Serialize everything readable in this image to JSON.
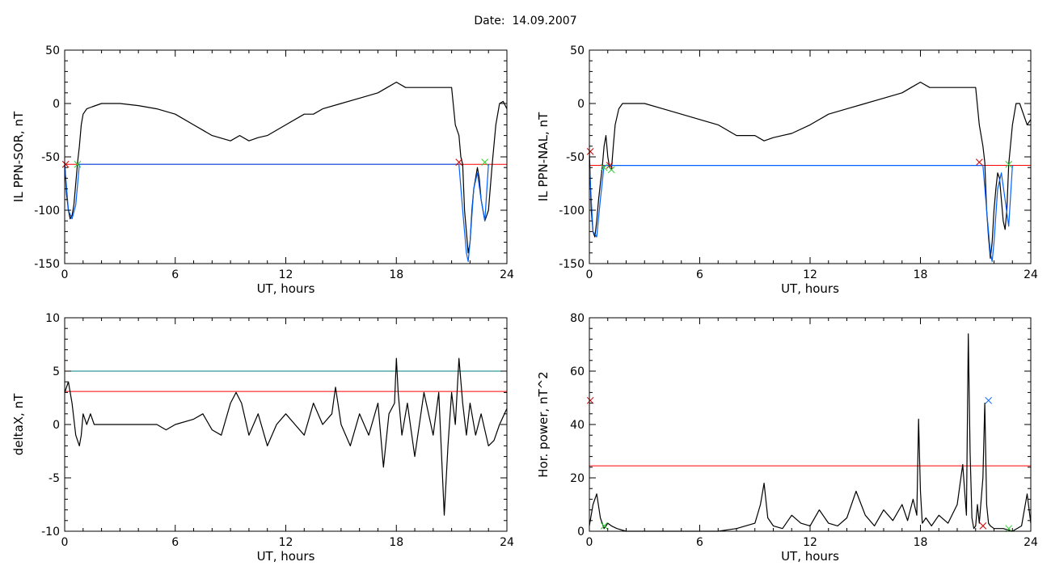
{
  "page": {
    "title": "Date:  14.09.2007"
  },
  "chart_data": [
    {
      "id": "sor",
      "type": "line",
      "xlabel": "UT, hours",
      "ylabel": "IL PPN-SOR, nT",
      "xlim": [
        0,
        24
      ],
      "ylim": [
        -150,
        50
      ],
      "xticks": [
        0,
        6,
        12,
        18,
        24
      ],
      "yticks": [
        -150,
        -100,
        -50,
        0,
        50
      ],
      "threshold_lines": [
        {
          "y": -57,
          "color": "#ff0000"
        }
      ],
      "series": [
        {
          "color": "#000000",
          "x": [
            0,
            0.1,
            0.2,
            0.3,
            0.4,
            0.5,
            0.6,
            0.7,
            0.8,
            0.9,
            1.0,
            1.2,
            1.5,
            2,
            3,
            4,
            5,
            6,
            7,
            8,
            9,
            9.5,
            10,
            10.5,
            11,
            12,
            13,
            13.5,
            14,
            15,
            16,
            17,
            17.5,
            18,
            18.5,
            19,
            20,
            21,
            21.2,
            21.4,
            21.5,
            21.6,
            21.7,
            21.8,
            21.9,
            22,
            22.1,
            22.2,
            22.3,
            22.4,
            22.5,
            22.6,
            22.7,
            22.8,
            23,
            23.2,
            23.4,
            23.6,
            23.8,
            24
          ],
          "y": [
            -55,
            -85,
            -100,
            -108,
            -105,
            -95,
            -75,
            -55,
            -40,
            -20,
            -10,
            -5,
            -3,
            0,
            0,
            -2,
            -5,
            -10,
            -20,
            -30,
            -35,
            -30,
            -35,
            -32,
            -30,
            -20,
            -10,
            -10,
            -5,
            0,
            5,
            10,
            15,
            20,
            15,
            15,
            15,
            15,
            -20,
            -30,
            -50,
            -57,
            -100,
            -120,
            -140,
            -130,
            -100,
            -80,
            -70,
            -60,
            -70,
            -90,
            -100,
            -110,
            -100,
            -57,
            -20,
            0,
            2,
            -5
          ]
        },
        {
          "color": "#0060ff",
          "x": [
            0,
            0.2,
            0.4,
            0.6,
            0.8,
            21.4,
            21.6,
            21.8,
            21.9,
            22,
            22.2,
            22.4,
            22.6,
            22.8,
            23
          ],
          "y": [
            -57,
            -100,
            -108,
            -95,
            -57,
            -57,
            -100,
            -140,
            -148,
            -130,
            -80,
            -65,
            -90,
            -110,
            -57
          ]
        }
      ],
      "markers": [
        {
          "x": 0.05,
          "y": -57,
          "color": "#cc0000",
          "shape": "x"
        },
        {
          "x": 0.7,
          "y": -57,
          "color": "#33cc33",
          "shape": "x"
        },
        {
          "x": 21.4,
          "y": -55,
          "color": "#cc0000",
          "shape": "x"
        },
        {
          "x": 22.8,
          "y": -55,
          "color": "#33cc33",
          "shape": "x"
        }
      ]
    },
    {
      "id": "nal",
      "type": "line",
      "xlabel": "UT, hours",
      "ylabel": "IL PPN-NAL, nT",
      "xlim": [
        0,
        24
      ],
      "ylim": [
        -150,
        50
      ],
      "xticks": [
        0,
        6,
        12,
        18,
        24
      ],
      "yticks": [
        -150,
        -100,
        -50,
        0,
        50
      ],
      "threshold_lines": [
        {
          "y": -58,
          "color": "#ff0000"
        }
      ],
      "series": [
        {
          "color": "#000000",
          "x": [
            0,
            0.1,
            0.2,
            0.3,
            0.4,
            0.5,
            0.6,
            0.7,
            0.8,
            0.9,
            1.0,
            1.1,
            1.2,
            1.3,
            1.4,
            1.6,
            1.8,
            2,
            3,
            4,
            5,
            6,
            7,
            8,
            9,
            9.5,
            10,
            10.5,
            11,
            12,
            13,
            14,
            15,
            16,
            17,
            17.5,
            18,
            18.5,
            19,
            20,
            21,
            21.2,
            21.4,
            21.5,
            21.6,
            21.7,
            21.8,
            21.9,
            22,
            22.1,
            22.2,
            22.3,
            22.4,
            22.5,
            22.6,
            22.7,
            22.8,
            23,
            23.2,
            23.4,
            23.6,
            23.8,
            24
          ],
          "y": [
            -45,
            -100,
            -120,
            -125,
            -110,
            -90,
            -75,
            -60,
            -40,
            -30,
            -50,
            -60,
            -62,
            -40,
            -20,
            -5,
            0,
            0,
            0,
            -5,
            -10,
            -15,
            -20,
            -30,
            -30,
            -35,
            -32,
            -30,
            -28,
            -20,
            -10,
            -5,
            0,
            5,
            10,
            15,
            20,
            15,
            15,
            15,
            15,
            -20,
            -40,
            -55,
            -100,
            -125,
            -145,
            -130,
            -100,
            -80,
            -65,
            -70,
            -90,
            -110,
            -118,
            -100,
            -57,
            -20,
            0,
            0,
            -10,
            -20,
            -15
          ]
        },
        {
          "color": "#0060ff",
          "x": [
            0,
            0.2,
            0.4,
            0.6,
            0.8,
            21.4,
            21.6,
            21.8,
            21.9,
            22,
            22.2,
            22.4,
            22.6,
            22.8,
            23
          ],
          "y": [
            -58,
            -120,
            -125,
            -90,
            -58,
            -58,
            -100,
            -140,
            -148,
            -130,
            -80,
            -65,
            -90,
            -115,
            -58
          ]
        }
      ],
      "markers": [
        {
          "x": 0.05,
          "y": -45,
          "color": "#cc0000",
          "shape": "x"
        },
        {
          "x": 0.8,
          "y": -60,
          "color": "#33cc33",
          "shape": "x"
        },
        {
          "x": 1.1,
          "y": -58,
          "color": "#cc0000",
          "shape": "x"
        },
        {
          "x": 1.2,
          "y": -62,
          "color": "#33cc33",
          "shape": "x"
        },
        {
          "x": 21.2,
          "y": -55,
          "color": "#cc0000",
          "shape": "x"
        },
        {
          "x": 22.8,
          "y": -57,
          "color": "#33cc33",
          "shape": "x"
        }
      ]
    },
    {
      "id": "deltax",
      "type": "line",
      "xlabel": "UT, hours",
      "ylabel": "deltaX, nT",
      "xlim": [
        0,
        24
      ],
      "ylim": [
        -10,
        10
      ],
      "xticks": [
        0,
        6,
        12,
        18,
        24
      ],
      "yticks": [
        -10,
        -5,
        0,
        5,
        10
      ],
      "threshold_lines": [
        {
          "y": 5,
          "color": "#008080"
        },
        {
          "y": 3.1,
          "color": "#ff0000"
        }
      ],
      "series": [
        {
          "color": "#000000",
          "x": [
            0,
            0.2,
            0.4,
            0.6,
            0.8,
            0.9,
            1.0,
            1.2,
            1.4,
            1.6,
            2,
            2.5,
            3,
            4,
            5,
            5.5,
            6,
            7,
            7.5,
            8,
            8.5,
            9,
            9.3,
            9.6,
            10,
            10.5,
            11,
            11.5,
            12,
            12.5,
            13,
            13.5,
            14,
            14.5,
            14.7,
            15,
            15.5,
            16,
            16.5,
            17,
            17.3,
            17.6,
            17.9,
            18.0,
            18.1,
            18.3,
            18.6,
            19,
            19.5,
            20,
            20.3,
            20.6,
            20.8,
            21.0,
            21.2,
            21.4,
            21.6,
            21.8,
            22,
            22.3,
            22.6,
            23,
            23.3,
            23.6,
            24
          ],
          "y": [
            3,
            4,
            2,
            -1,
            -2,
            -1,
            1,
            0,
            1,
            0,
            0,
            0,
            0,
            0,
            0,
            -0.5,
            0,
            0.5,
            1,
            -0.5,
            -1,
            2,
            3,
            2,
            -1,
            1,
            -2,
            0,
            1,
            0,
            -1,
            2,
            0,
            1,
            3.5,
            0,
            -2,
            1,
            -1,
            2,
            -4,
            1,
            2,
            6.2,
            3,
            -1,
            2,
            -3,
            3,
            -1,
            3,
            -8.5,
            -2,
            3,
            0,
            6.2,
            2,
            -1,
            2,
            -1,
            1,
            -2,
            -1.5,
            0,
            1.5
          ]
        }
      ],
      "markers": []
    },
    {
      "id": "power",
      "type": "line",
      "xlabel": "UT, hours",
      "ylabel": "Hor. power, nT^2",
      "xlim": [
        0,
        24
      ],
      "ylim": [
        0,
        80
      ],
      "xticks": [
        0,
        6,
        12,
        18,
        24
      ],
      "yticks": [
        0,
        20,
        40,
        60,
        80
      ],
      "threshold_lines": [
        {
          "y": 24.5,
          "color": "#ff0000"
        }
      ],
      "series": [
        {
          "color": "#000000",
          "x": [
            0,
            0.2,
            0.4,
            0.6,
            0.8,
            1.0,
            1.2,
            1.5,
            2,
            3,
            4,
            5,
            6,
            7,
            8,
            9,
            9.3,
            9.5,
            9.7,
            10,
            10.5,
            11,
            11.5,
            12,
            12.5,
            13,
            13.5,
            14,
            14.5,
            15,
            15.5,
            16,
            16.5,
            17,
            17.3,
            17.6,
            17.8,
            17.9,
            18.0,
            18.1,
            18.3,
            18.6,
            19,
            19.5,
            20,
            20.3,
            20.5,
            20.6,
            20.7,
            20.8,
            20.9,
            21.0,
            21.1,
            21.2,
            21.4,
            21.5,
            21.6,
            21.7,
            21.8,
            22,
            22.5,
            23,
            23.5,
            23.8,
            24
          ],
          "y": [
            2,
            10,
            14,
            5,
            1,
            3,
            2,
            1,
            0,
            0,
            0,
            0,
            0,
            0,
            1,
            3,
            10,
            18,
            5,
            2,
            1,
            6,
            3,
            2,
            8,
            3,
            2,
            5,
            15,
            6,
            2,
            8,
            4,
            10,
            4,
            12,
            6,
            42,
            15,
            3,
            5,
            2,
            6,
            3,
            10,
            25,
            6,
            74,
            30,
            5,
            1,
            2,
            10,
            3,
            20,
            48,
            10,
            3,
            2,
            1,
            1,
            0,
            2,
            14,
            3
          ]
        }
      ],
      "markers": [
        {
          "x": 0.05,
          "y": 49,
          "color": "#cc0000",
          "shape": "x"
        },
        {
          "x": 0.8,
          "y": 2,
          "color": "#33cc33",
          "shape": "x"
        },
        {
          "x": 21.4,
          "y": 2,
          "color": "#cc0000",
          "shape": "x"
        },
        {
          "x": 21.7,
          "y": 49,
          "color": "#0060ff",
          "shape": "x"
        },
        {
          "x": 22.8,
          "y": 1,
          "color": "#33cc33",
          "shape": "x"
        }
      ]
    }
  ]
}
